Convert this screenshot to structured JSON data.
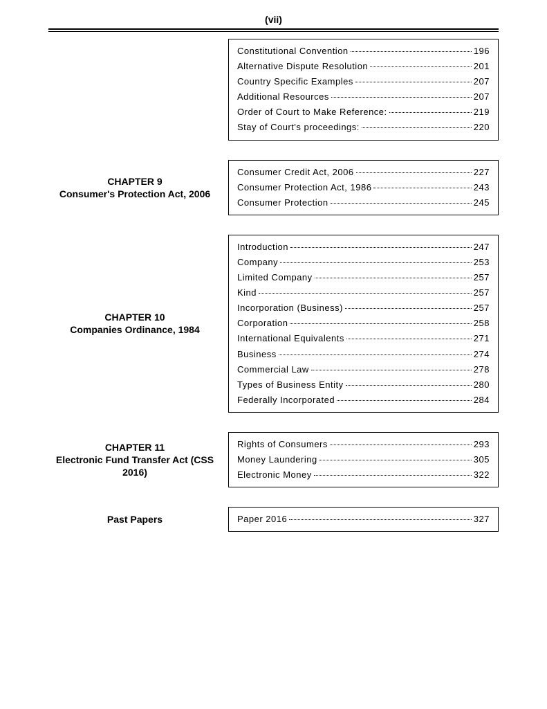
{
  "page_number": "(vii)",
  "sections": [
    {
      "label": "",
      "entries": [
        {
          "title": "Constitutional Convention",
          "page": "196"
        },
        {
          "title": "Alternative Dispute Resolution",
          "page": "201"
        },
        {
          "title": "Country Specific Examples",
          "page": "207"
        },
        {
          "title": "Additional Resources",
          "page": "207"
        },
        {
          "title": "Order of Court to Make Reference:",
          "page": "219"
        },
        {
          "title": "Stay of Court's proceedings:",
          "page": "220"
        }
      ]
    },
    {
      "chapter_num": "CHAPTER 9",
      "chapter_title": "Consumer's Protection Act, 2006",
      "entries": [
        {
          "title": "Consumer Credit Act, 2006",
          "page": "227"
        },
        {
          "title": "Consumer Protection Act, 1986",
          "page": "243"
        },
        {
          "title": "Consumer Protection",
          "page": "245"
        }
      ]
    },
    {
      "chapter_num": "CHAPTER 10",
      "chapter_title": "Companies Ordinance, 1984",
      "entries": [
        {
          "title": "Introduction",
          "page": "247"
        },
        {
          "title": "Company",
          "page": "253"
        },
        {
          "title": "Limited Company",
          "page": "257"
        },
        {
          "title": "Kind",
          "page": "257"
        },
        {
          "title": "Incorporation (Business)",
          "page": "257"
        },
        {
          "title": "Corporation",
          "page": "258"
        },
        {
          "title": "International Equivalents",
          "page": "271"
        },
        {
          "title": "Business",
          "page": "274"
        },
        {
          "title": "Commercial Law",
          "page": "278"
        },
        {
          "title": "Types of Business Entity",
          "page": "280"
        },
        {
          "title": "Federally Incorporated",
          "page": "284"
        }
      ]
    },
    {
      "chapter_num": "CHAPTER 11",
      "chapter_title": "Electronic Fund Transfer Act (CSS 2016)",
      "entries": [
        {
          "title": "Rights of Consumers",
          "page": "293"
        },
        {
          "title": "Money Laundering",
          "page": "305"
        },
        {
          "title": "Electronic Money",
          "page": "322"
        }
      ]
    },
    {
      "chapter_num": "Past Papers",
      "chapter_title": "",
      "entries": [
        {
          "title": "Paper 2016",
          "page": "327"
        }
      ]
    }
  ]
}
